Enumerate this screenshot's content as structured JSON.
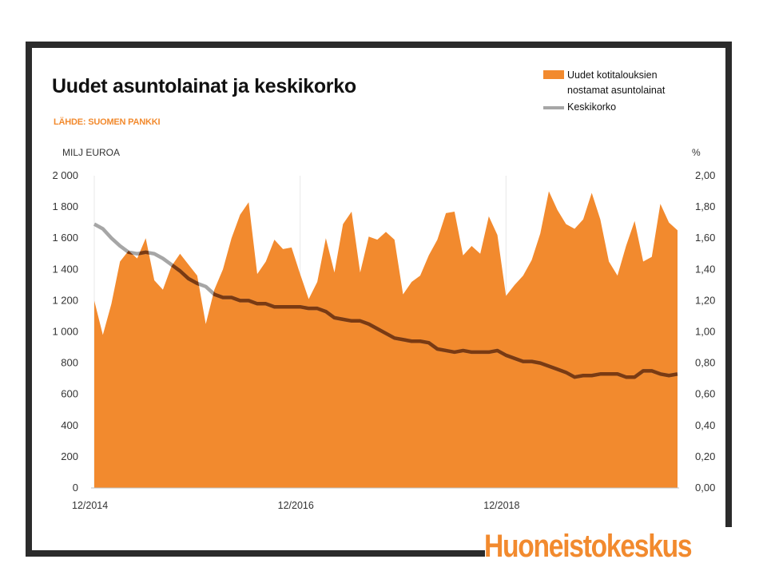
{
  "chart_data": {
    "type": "area",
    "title": "Uudet asuntolainat ja keskikorko",
    "source": "LÄHDE: SUOMEN PANKKI",
    "y_left_label": "MILJ EUROA",
    "y_right_label": "%",
    "y_left_ticks": [
      "0",
      "200",
      "400",
      "600",
      "800",
      "1 000",
      "1 200",
      "1 400",
      "1 600",
      "1 800",
      "2 000"
    ],
    "y_right_ticks": [
      "0,00",
      "0,20",
      "0,40",
      "0,60",
      "0,80",
      "1,00",
      "1,20",
      "1,40",
      "1,60",
      "1,80",
      "2,00"
    ],
    "ylim_left": [
      0,
      2000
    ],
    "ylim_right": [
      0,
      2.0
    ],
    "x_tick_labels": [
      "12/2014",
      "12/2016",
      "12/2018"
    ],
    "x_start": "12/2014",
    "x_interval": "month",
    "legend_position": "top-right",
    "series": [
      {
        "name": "Uudet kotitalouksien nostamat asuntolainat",
        "axis": "left",
        "type": "area",
        "values": [
          1200,
          980,
          1180,
          1450,
          1520,
          1470,
          1600,
          1330,
          1270,
          1420,
          1500,
          1430,
          1360,
          1050,
          1270,
          1400,
          1600,
          1750,
          1830,
          1370,
          1450,
          1590,
          1530,
          1540,
          1370,
          1210,
          1320,
          1600,
          1380,
          1690,
          1770,
          1380,
          1610,
          1590,
          1640,
          1590,
          1240,
          1320,
          1360,
          1490,
          1590,
          1760,
          1770,
          1490,
          1550,
          1500,
          1740,
          1620,
          1230,
          1300,
          1360,
          1460,
          1630,
          1900,
          1780,
          1690,
          1660,
          1720,
          1890,
          1720,
          1450,
          1360,
          1550,
          1710,
          1450,
          1480,
          1820,
          1700,
          1650
        ]
      },
      {
        "name": "Keskikorko",
        "axis": "right",
        "type": "line",
        "values": [
          1.69,
          1.66,
          1.6,
          1.55,
          1.51,
          1.5,
          1.51,
          1.5,
          1.47,
          1.43,
          1.39,
          1.34,
          1.31,
          1.29,
          1.24,
          1.22,
          1.22,
          1.2,
          1.2,
          1.18,
          1.18,
          1.16,
          1.16,
          1.16,
          1.16,
          1.15,
          1.15,
          1.13,
          1.09,
          1.08,
          1.07,
          1.07,
          1.05,
          1.02,
          0.99,
          0.96,
          0.95,
          0.94,
          0.94,
          0.93,
          0.89,
          0.88,
          0.87,
          0.88,
          0.87,
          0.87,
          0.87,
          0.88,
          0.85,
          0.83,
          0.81,
          0.81,
          0.8,
          0.78,
          0.76,
          0.74,
          0.71,
          0.72,
          0.72,
          0.73,
          0.73,
          0.73,
          0.71,
          0.71,
          0.75,
          0.75,
          0.73,
          0.72,
          0.73
        ]
      }
    ],
    "colors": {
      "area": "#f28a2e",
      "line_outside": "#a6a6a6",
      "line_inside": "#7a3a12",
      "frame": "#2b2b2b",
      "brand": "#f28a2e"
    }
  },
  "brand": {
    "name": "Huoneistokeskus"
  }
}
